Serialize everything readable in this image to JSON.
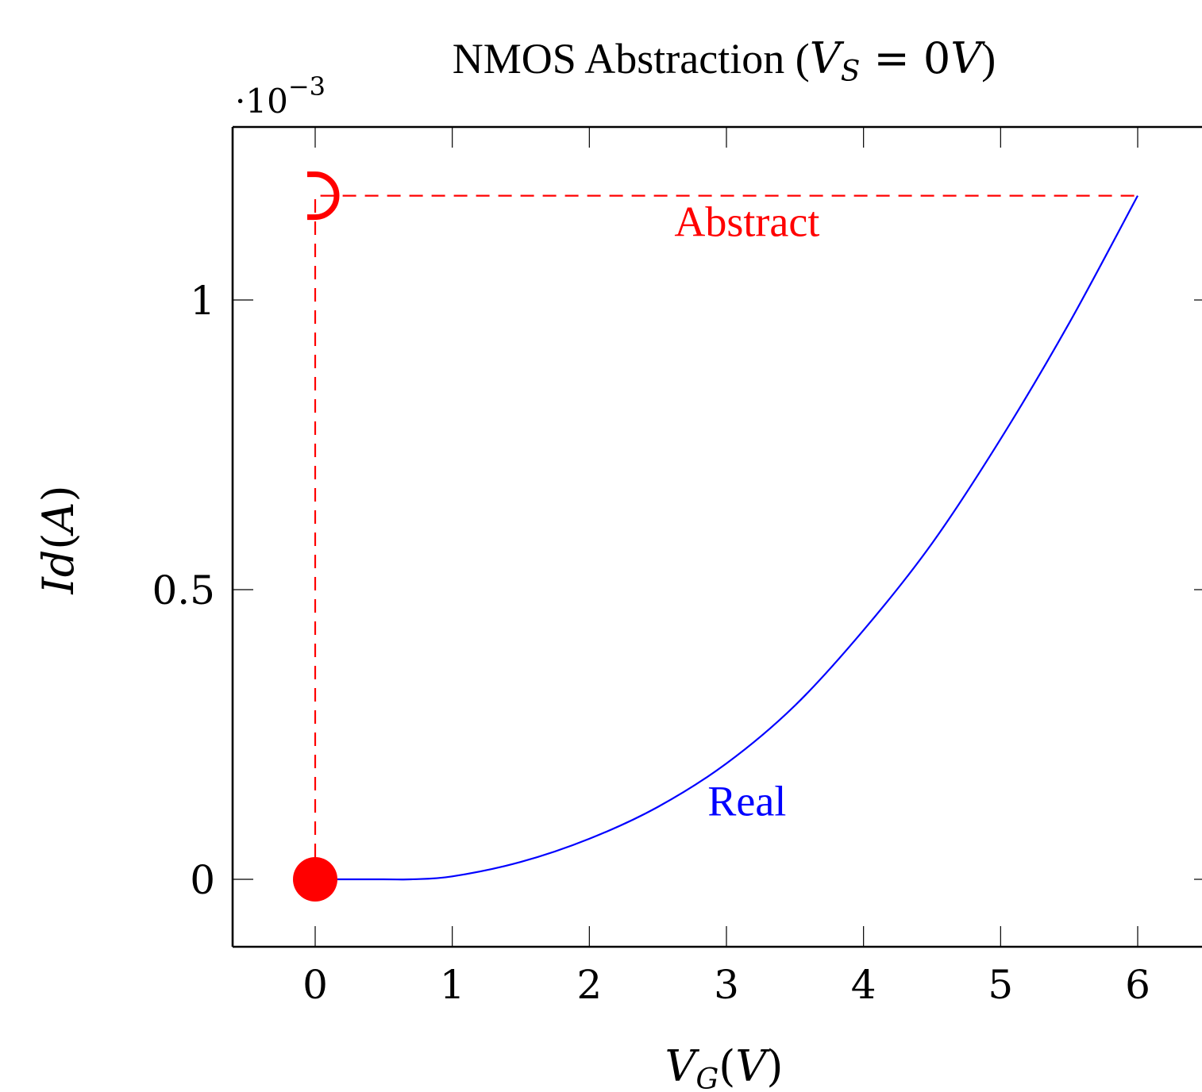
{
  "chart_data": {
    "type": "line",
    "title": {
      "prefix": "NMOS Abstraction (",
      "math_var": "V",
      "math_sub": "S",
      "math_rest": " = 0",
      "math_unit": "V",
      "suffix": ")"
    },
    "y_multiplier": {
      "dot": "·",
      "base": "10",
      "exponent": "−3"
    },
    "xlabel": {
      "var": "V",
      "sub": "G",
      "open": "(",
      "unit": "V",
      "close": ")"
    },
    "ylabel": {
      "var": "I",
      "var2": "d",
      "open": "(",
      "unit": "A",
      "close": ")"
    },
    "xlim": [
      -0.6,
      6.5
    ],
    "ylim": [
      -0.12,
      1.29
    ],
    "x_ticks": [
      0,
      1,
      2,
      3,
      4,
      5,
      6
    ],
    "x_tick_labels": [
      "0",
      "1",
      "2",
      "3",
      "4",
      "5",
      "6"
    ],
    "y_ticks": [
      0,
      0.5,
      1
    ],
    "y_tick_labels": [
      "0",
      "0.5",
      "1"
    ],
    "grid": false,
    "series": [
      {
        "label": "Real",
        "color": "#0000ff",
        "style": "solid",
        "x": [
          0,
          0.5,
          0.7,
          1.0,
          1.5,
          2.0,
          2.5,
          3.0,
          3.5,
          4.0,
          4.5,
          5.0,
          5.5,
          6.0
        ],
        "y": [
          0,
          0,
          0,
          0.005,
          0.03,
          0.07,
          0.125,
          0.2,
          0.3,
          0.43,
          0.58,
          0.76,
          0.96,
          1.18
        ]
      },
      {
        "label": "Abstract",
        "color": "#ff0000",
        "style": "dashed",
        "x": [
          0,
          0,
          6
        ],
        "y": [
          0,
          1.18,
          1.18
        ]
      }
    ],
    "annotations": [
      {
        "text": "Abstract",
        "x": 3.15,
        "y": 1.11,
        "color": "#ff0000"
      },
      {
        "text": "Real",
        "x": 3.15,
        "y": 0.11,
        "color": "#0000ff"
      }
    ],
    "markers": [
      {
        "kind": "filled-dot",
        "x": 0,
        "y": 0,
        "color": "#ff0000"
      },
      {
        "kind": "open-bracket",
        "x": 0,
        "y": 1.18,
        "color": "#ff0000"
      }
    ]
  }
}
